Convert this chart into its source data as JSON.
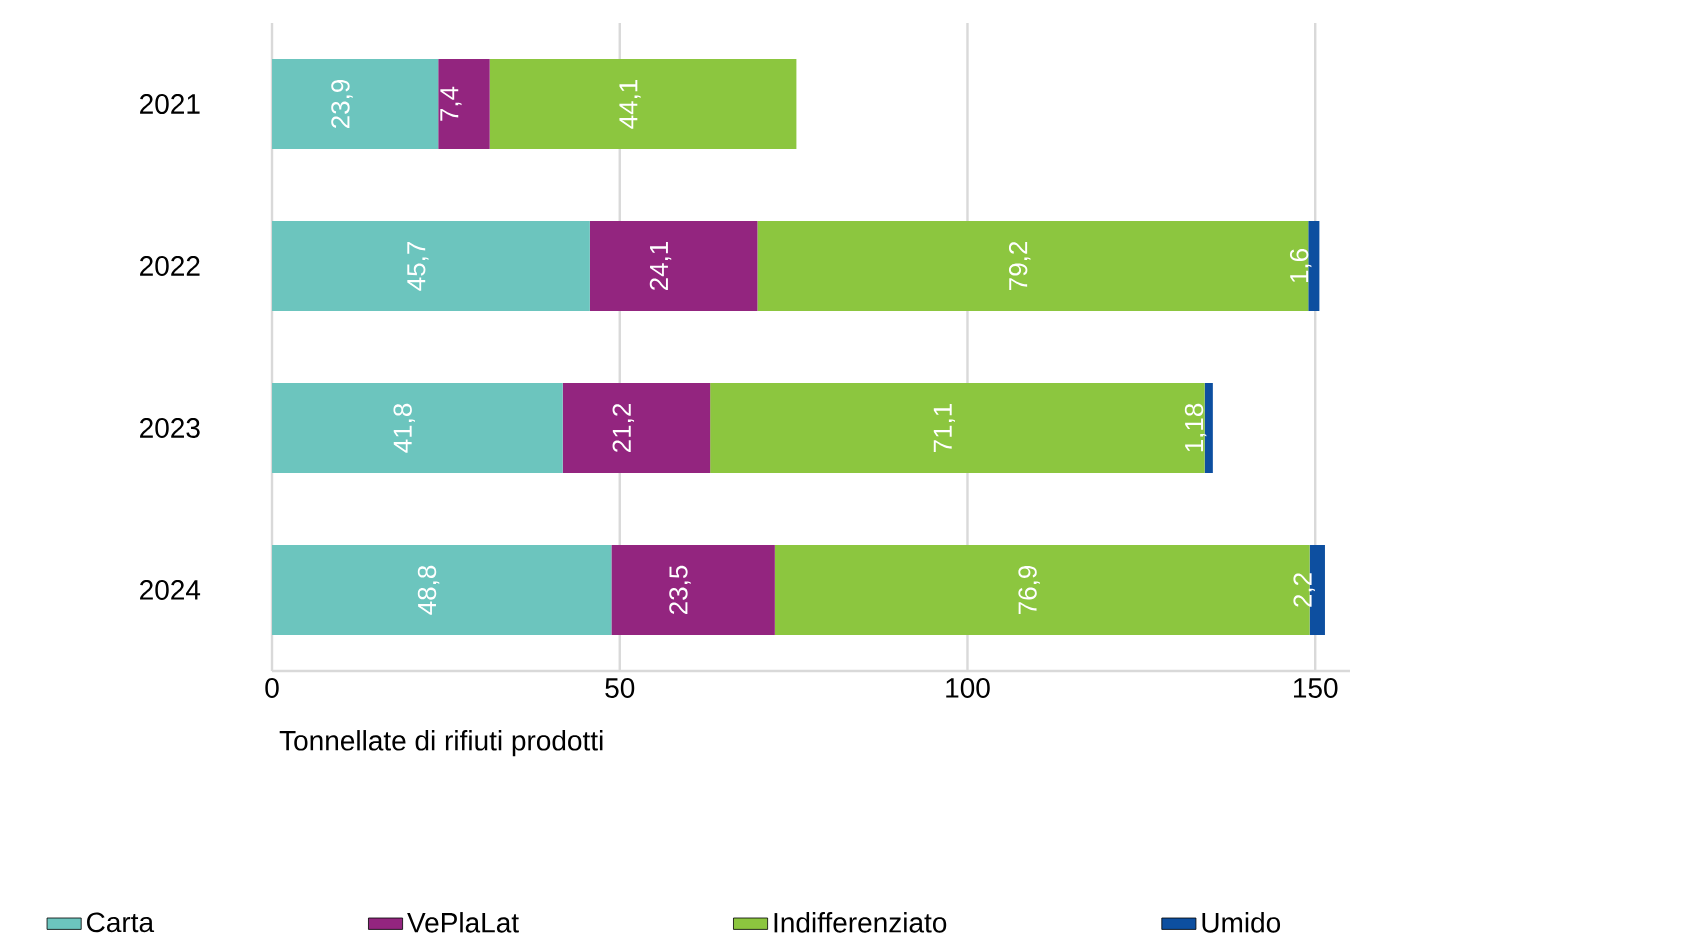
{
  "chart_data": {
    "type": "bar",
    "orientation": "horizontal",
    "stacked": true,
    "categories": [
      "2021",
      "2022",
      "2023",
      "2024"
    ],
    "series": [
      {
        "name": "Carta",
        "color": "#6cc5be",
        "values": [
          23.9,
          45.7,
          41.8,
          48.8
        ],
        "value_labels": [
          "23,9",
          "45,7",
          "41,8",
          "48,8"
        ]
      },
      {
        "name": "VePlaLat",
        "color": "#93257f",
        "values": [
          7.4,
          24.1,
          21.2,
          23.5
        ],
        "value_labels": [
          "7,4",
          "24,1",
          "21,2",
          "23,5"
        ]
      },
      {
        "name": "Indifferenziato",
        "color": "#8cc63f",
        "values": [
          44.1,
          79.2,
          71.1,
          76.9
        ],
        "value_labels": [
          "44,1",
          "79,2",
          "71,1",
          "76,9"
        ]
      },
      {
        "name": "Umido",
        "color": "#0d4fa0",
        "values": [
          null,
          1.6,
          1.18,
          2.2
        ],
        "value_labels": [
          null,
          "1,6",
          "1,18",
          "2,2"
        ]
      }
    ],
    "xlabel": "Tonnellate di rifiuti prodotti",
    "xlim": [
      0,
      155
    ],
    "xticks": [
      0,
      50,
      100,
      150
    ],
    "grid": "x",
    "legend": "bottom"
  }
}
